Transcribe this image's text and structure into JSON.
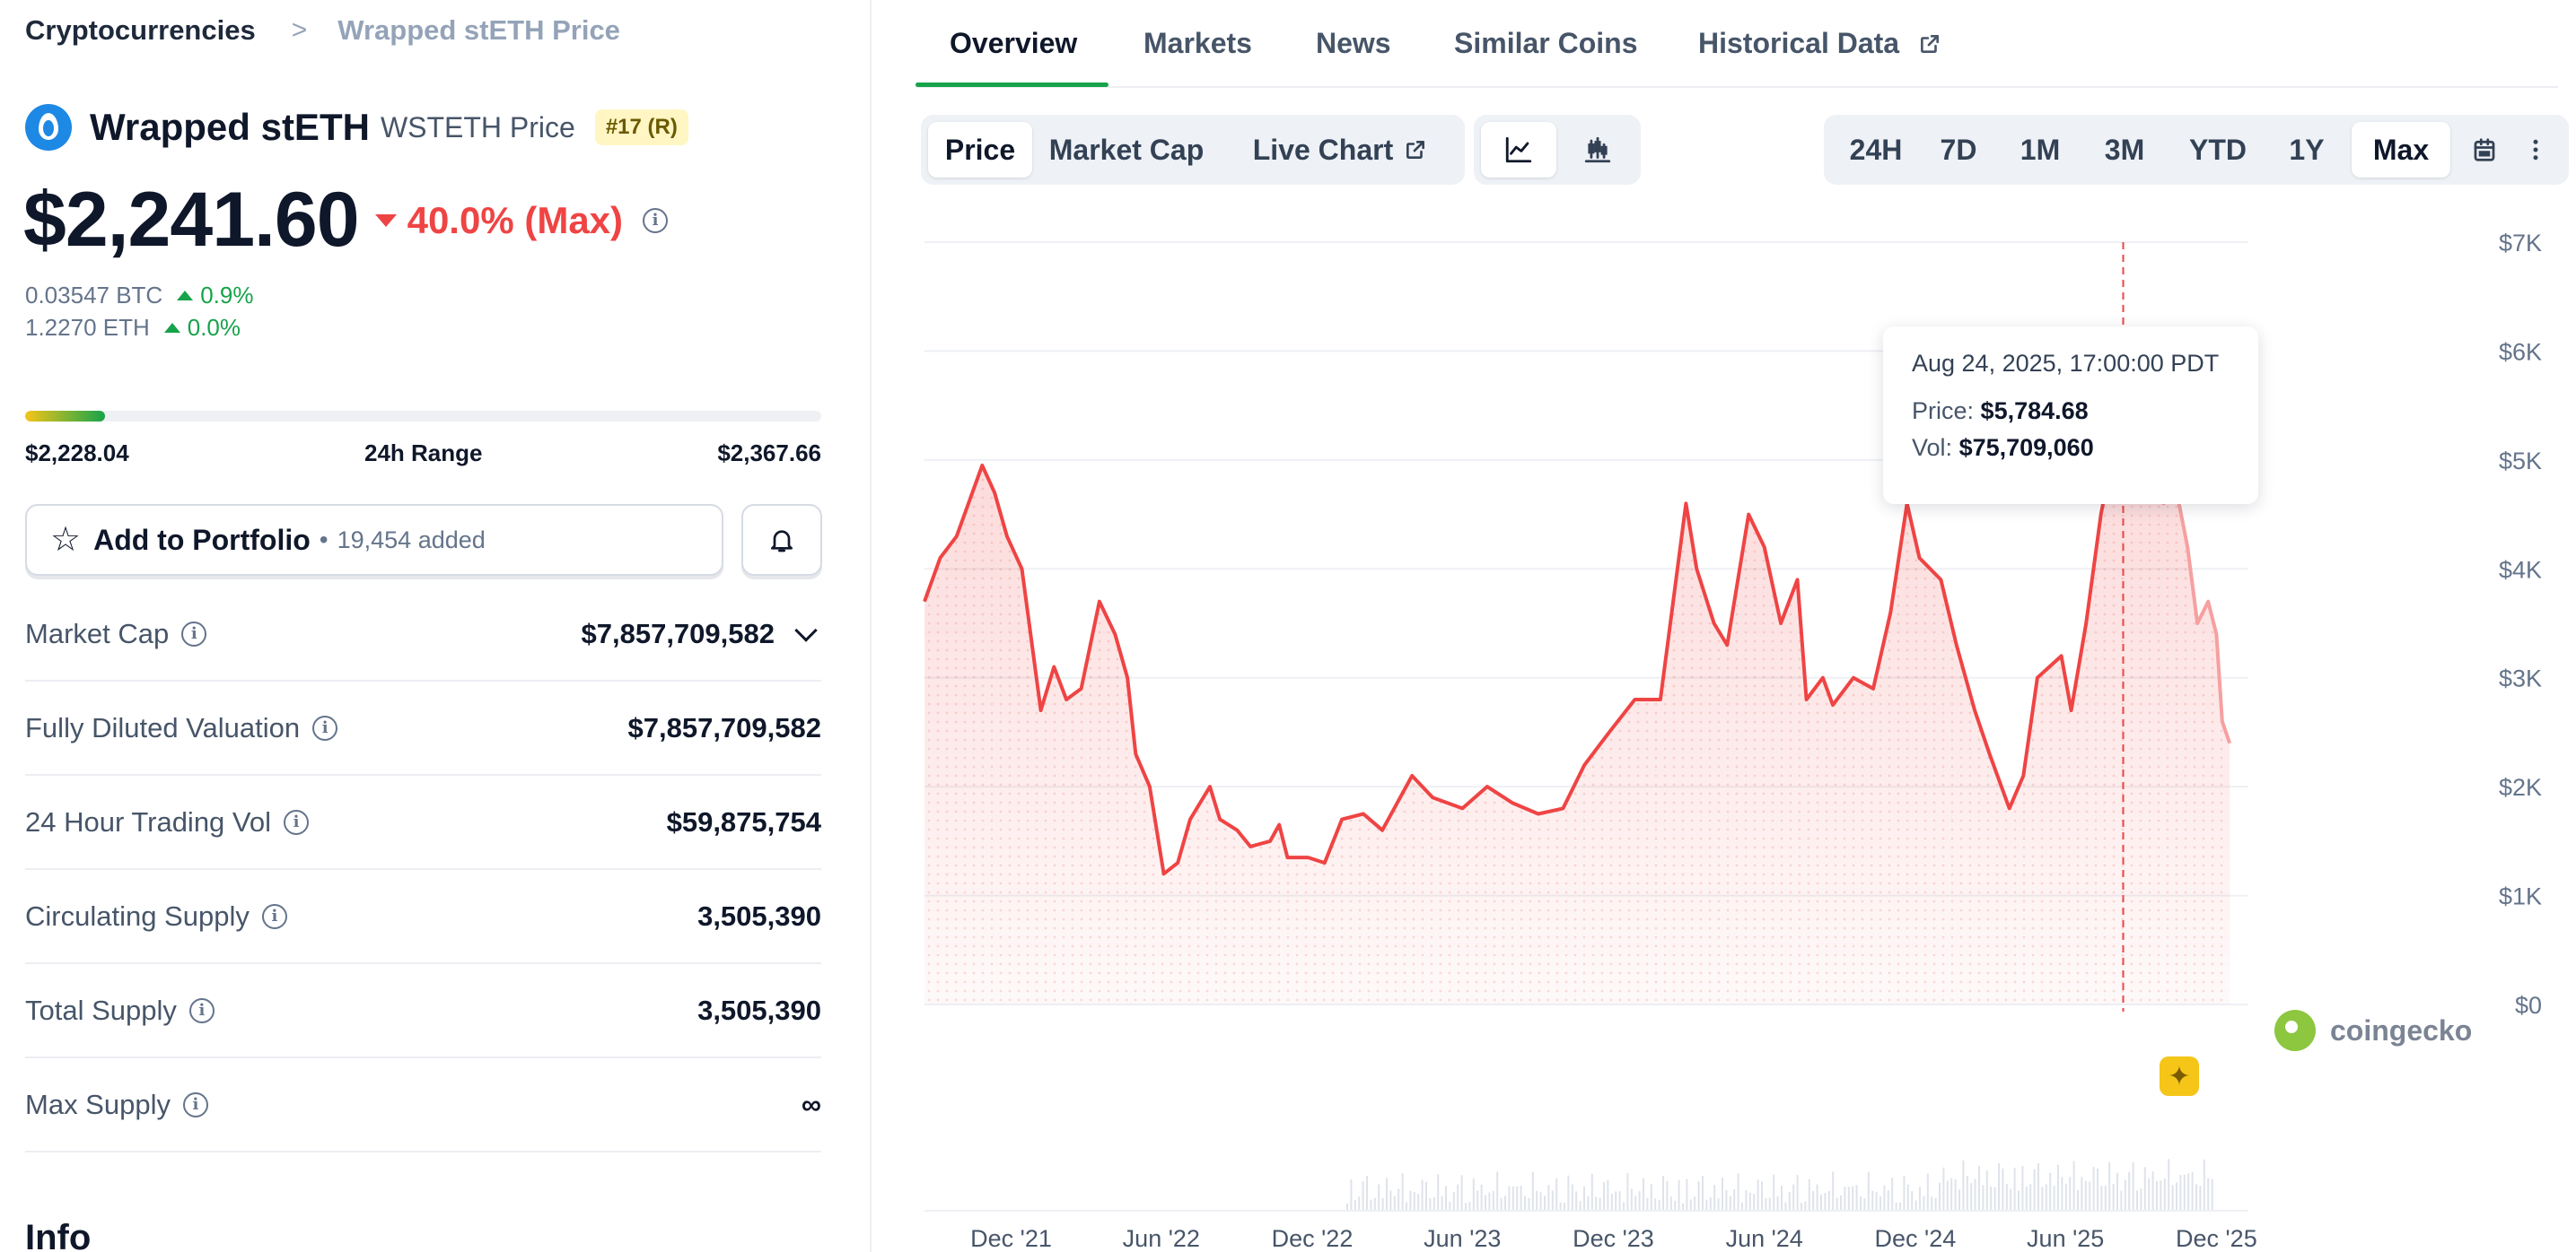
{
  "breadcrumb": {
    "root": "Cryptocurrencies",
    "separator": ">",
    "current": "Wrapped stETH Price"
  },
  "coin": {
    "name": "Wrapped stETH",
    "symbol_label": "WSTETH Price",
    "rank_badge": "#17 (R)",
    "logo_icon": "wsteth-drop-icon",
    "logo_color": "#1e88e5"
  },
  "price": {
    "value": "$2,241.60",
    "change": "40.0% (Max)",
    "change_direction": "down",
    "change_color": "#ef4444"
  },
  "conversions": [
    {
      "value": "0.03547 BTC",
      "change": "0.9%"
    },
    {
      "value": "1.2270 ETH",
      "change": "0.0%"
    }
  ],
  "range": {
    "low": "$2,228.04",
    "label": "24h Range",
    "high": "$2,367.66",
    "position_fraction": 0.1
  },
  "portfolio": {
    "label": "Add to Portfolio",
    "dot": "•",
    "added": "19,454 added"
  },
  "stats": [
    {
      "label": "Market Cap",
      "value": "$7,857,709,582",
      "expandable": true
    },
    {
      "label": "Fully Diluted Valuation",
      "value": "$7,857,709,582"
    },
    {
      "label": "24 Hour Trading Vol",
      "value": "$59,875,754"
    },
    {
      "label": "Circulating Supply",
      "value": "3,505,390"
    },
    {
      "label": "Total Supply",
      "value": "3,505,390"
    },
    {
      "label": "Max Supply",
      "value": "∞"
    }
  ],
  "info_heading": "Info",
  "tabs": [
    "Overview",
    "Markets",
    "News",
    "Similar Coins",
    "Historical Data"
  ],
  "active_tab": "Overview",
  "chart_types": {
    "items": [
      "Price",
      "Market Cap",
      "Live Chart"
    ],
    "active": "Price"
  },
  "ranges": {
    "items": [
      "24H",
      "7D",
      "1M",
      "3M",
      "YTD",
      "1Y",
      "Max"
    ],
    "active": "Max"
  },
  "tooltip": {
    "date": "Aug 24, 2025, 17:00:00 PDT",
    "price_label": "Price:",
    "price_value": "$5,784.68",
    "vol_label": "Vol:",
    "vol_value": "$75,709,060"
  },
  "watermark": "coingecko",
  "accent_color": "#16a34a",
  "chart_data": {
    "type": "area",
    "x_labels": [
      "Dec '21",
      "Jun '22",
      "Dec '22",
      "Jun '23",
      "Dec '23",
      "Jun '24",
      "Dec '24",
      "Jun '25",
      "Dec '25"
    ],
    "y_tick_labels": [
      "$0",
      "$1K",
      "$2K",
      "$3K",
      "$4K",
      "$5K",
      "$6K",
      "$7K"
    ],
    "ylim": [
      0,
      7000
    ],
    "grid": true,
    "line_color": "#ef4444",
    "x_start": "2021-09",
    "x_end": "2026-01",
    "series": [
      {
        "values": [
          [
            "2021-09-01",
            3700
          ],
          [
            "2021-09-20",
            4100
          ],
          [
            "2021-10-10",
            4300
          ],
          [
            "2021-11-10",
            4950
          ],
          [
            "2021-11-25",
            4700
          ],
          [
            "2021-12-10",
            4300
          ],
          [
            "2021-12-28",
            4000
          ],
          [
            "2022-01-20",
            2700
          ],
          [
            "2022-02-05",
            3100
          ],
          [
            "2022-02-20",
            2800
          ],
          [
            "2022-03-10",
            2900
          ],
          [
            "2022-04-01",
            3700
          ],
          [
            "2022-04-20",
            3400
          ],
          [
            "2022-05-05",
            3000
          ],
          [
            "2022-05-15",
            2300
          ],
          [
            "2022-06-01",
            2000
          ],
          [
            "2022-06-18",
            1200
          ],
          [
            "2022-07-05",
            1300
          ],
          [
            "2022-07-20",
            1700
          ],
          [
            "2022-08-13",
            2000
          ],
          [
            "2022-08-25",
            1700
          ],
          [
            "2022-09-15",
            1600
          ],
          [
            "2022-10-01",
            1450
          ],
          [
            "2022-10-25",
            1500
          ],
          [
            "2022-11-05",
            1650
          ],
          [
            "2022-11-15",
            1350
          ],
          [
            "2022-12-10",
            1350
          ],
          [
            "2022-12-30",
            1300
          ],
          [
            "2023-01-20",
            1700
          ],
          [
            "2023-02-15",
            1750
          ],
          [
            "2023-03-10",
            1600
          ],
          [
            "2023-04-15",
            2100
          ],
          [
            "2023-05-10",
            1900
          ],
          [
            "2023-06-15",
            1800
          ],
          [
            "2023-07-15",
            2000
          ],
          [
            "2023-08-15",
            1850
          ],
          [
            "2023-09-15",
            1750
          ],
          [
            "2023-10-15",
            1800
          ],
          [
            "2023-11-10",
            2200
          ],
          [
            "2023-12-10",
            2500
          ],
          [
            "2024-01-10",
            2800
          ],
          [
            "2024-02-10",
            2800
          ],
          [
            "2024-03-12",
            4600
          ],
          [
            "2024-03-25",
            4000
          ],
          [
            "2024-04-15",
            3500
          ],
          [
            "2024-05-01",
            3300
          ],
          [
            "2024-05-27",
            4500
          ],
          [
            "2024-06-15",
            4200
          ],
          [
            "2024-07-05",
            3500
          ],
          [
            "2024-07-25",
            3900
          ],
          [
            "2024-08-05",
            2800
          ],
          [
            "2024-08-25",
            3000
          ],
          [
            "2024-09-06",
            2750
          ],
          [
            "2024-10-01",
            3000
          ],
          [
            "2024-10-25",
            2900
          ],
          [
            "2024-11-15",
            3600
          ],
          [
            "2024-12-05",
            4600
          ],
          [
            "2024-12-20",
            4100
          ],
          [
            "2025-01-15",
            3900
          ],
          [
            "2025-02-03",
            3300
          ],
          [
            "2025-02-25",
            2700
          ],
          [
            "2025-03-15",
            2300
          ],
          [
            "2025-04-08",
            1800
          ],
          [
            "2025-04-25",
            2100
          ],
          [
            "2025-05-12",
            3000
          ],
          [
            "2025-06-10",
            3200
          ],
          [
            "2025-06-22",
            2700
          ],
          [
            "2025-07-10",
            3500
          ],
          [
            "2025-07-28",
            4500
          ],
          [
            "2025-08-10",
            5000
          ],
          [
            "2025-08-24",
            5784.68
          ],
          [
            "2025-09-01",
            5200
          ],
          [
            "2025-09-15",
            5500
          ],
          [
            "2025-09-28",
            4900
          ],
          [
            "2025-10-08",
            5400
          ],
          [
            "2025-10-12",
            4600
          ],
          [
            "2025-10-28",
            4700
          ],
          [
            "2025-11-10",
            4200
          ],
          [
            "2025-11-22",
            3500
          ],
          [
            "2025-12-05",
            3700
          ],
          [
            "2025-12-15",
            3400
          ],
          [
            "2025-12-22",
            2600
          ],
          [
            "2025-12-31",
            2400
          ]
        ]
      }
    ],
    "highlight_point": [
      "2025-08-24",
      5784.68
    ]
  }
}
